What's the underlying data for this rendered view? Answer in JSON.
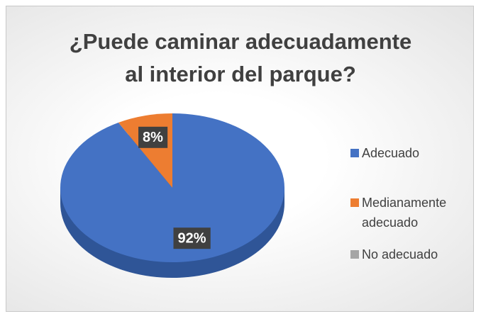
{
  "chart_data": {
    "type": "pie",
    "title": "¿Puede caminar adecuadamente al interior del parque?",
    "categories": [
      "Adecuado",
      "Medianamente adecuado",
      "No adecuado"
    ],
    "values": [
      92,
      8,
      0
    ],
    "value_labels": [
      "92%",
      "8%",
      null
    ],
    "colors": [
      "#4472c4",
      "#ed7d31",
      "#a5a5a5"
    ],
    "legend": "right"
  }
}
